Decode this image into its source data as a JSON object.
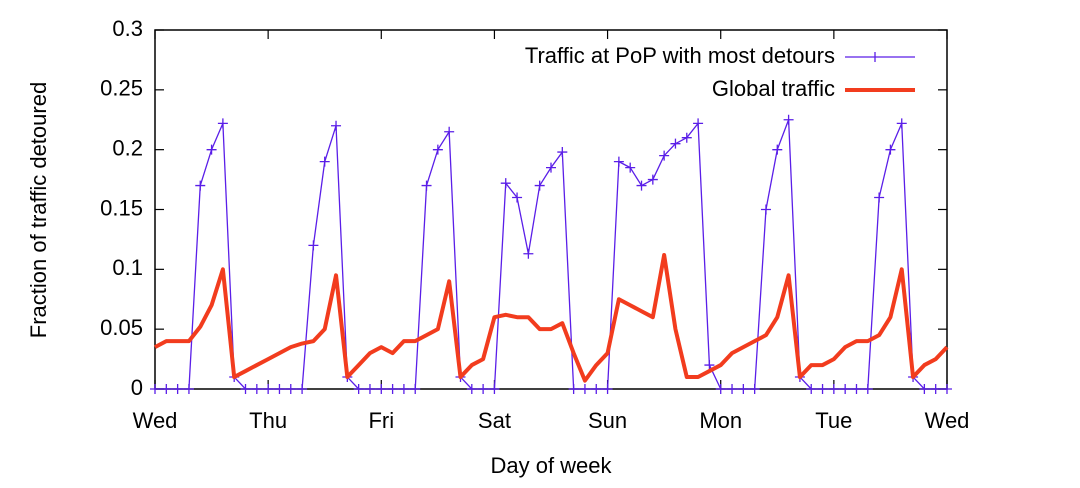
{
  "chart_data": {
    "type": "line",
    "xlabel": "Day of week",
    "ylabel": "Fraction of traffic detoured",
    "x": [
      0,
      0.1,
      0.2,
      0.3,
      0.4,
      0.5,
      0.6,
      0.7,
      0.8,
      0.9,
      1,
      1.1,
      1.2,
      1.3,
      1.4,
      1.5,
      1.6,
      1.7,
      1.8,
      1.9,
      2,
      2.1,
      2.2,
      2.3,
      2.4,
      2.5,
      2.6,
      2.7,
      2.8,
      2.9,
      3,
      3.1,
      3.2,
      3.3,
      3.4,
      3.5,
      3.6,
      3.7,
      3.8,
      3.9,
      4,
      4.1,
      4.2,
      4.3,
      4.4,
      4.5,
      4.6,
      4.7,
      4.8,
      4.9,
      5,
      5.1,
      5.2,
      5.3,
      5.4,
      5.5,
      5.6,
      5.7,
      5.8,
      5.9,
      6,
      6.1,
      6.2,
      6.3,
      6.4,
      6.5,
      6.6,
      6.7,
      6.8,
      6.9,
      7
    ],
    "series": [
      {
        "name": "Traffic at PoP with most detours",
        "color": "#5a1ee8",
        "marker": "+",
        "values": [
          0,
          0,
          0,
          0,
          0.17,
          0.2,
          0.222,
          0.01,
          0,
          0,
          0,
          0,
          0,
          0,
          0.12,
          0.19,
          0.22,
          0.01,
          0,
          0,
          0,
          0,
          0,
          0,
          0.17,
          0.2,
          0.215,
          0.01,
          0,
          0,
          0,
          0.172,
          0.16,
          0.113,
          0.17,
          0.185,
          0.198,
          0,
          0,
          0,
          0,
          0.19,
          0.185,
          0.17,
          0.175,
          0.195,
          0.205,
          0.21,
          0.222,
          0.02,
          0,
          0,
          0,
          0,
          0.15,
          0.2,
          0.225,
          0.01,
          0,
          0,
          0,
          0,
          0,
          0,
          0.16,
          0.2,
          0.222,
          0.01,
          0,
          0,
          0
        ]
      },
      {
        "name": "Global traffic",
        "color": "#f23c1e",
        "marker": null,
        "values": [
          0.035,
          0.04,
          0.04,
          0.04,
          0.052,
          0.07,
          0.1,
          0.01,
          0.015,
          0.02,
          0.025,
          0.03,
          0.035,
          0.038,
          0.04,
          0.05,
          0.095,
          0.01,
          0.02,
          0.03,
          0.035,
          0.03,
          0.04,
          0.04,
          0.045,
          0.05,
          0.09,
          0.01,
          0.02,
          0.025,
          0.06,
          0.062,
          0.06,
          0.06,
          0.05,
          0.05,
          0.055,
          0.03,
          0.007,
          0.02,
          0.03,
          0.075,
          0.07,
          0.065,
          0.06,
          0.112,
          0.05,
          0.01,
          0.01,
          0.015,
          0.02,
          0.03,
          0.035,
          0.04,
          0.045,
          0.06,
          0.095,
          0.01,
          0.02,
          0.02,
          0.025,
          0.035,
          0.04,
          0.04,
          0.045,
          0.06,
          0.1,
          0.01,
          0.02,
          0.025,
          0.035
        ]
      }
    ],
    "xlim": [
      0,
      7
    ],
    "xticks": [
      {
        "value": 0,
        "label": "Wed"
      },
      {
        "value": 1,
        "label": "Thu"
      },
      {
        "value": 2,
        "label": "Fri"
      },
      {
        "value": 3,
        "label": "Sat"
      },
      {
        "value": 4,
        "label": "Sun"
      },
      {
        "value": 5,
        "label": "Mon"
      },
      {
        "value": 6,
        "label": "Tue"
      },
      {
        "value": 7,
        "label": "Wed"
      }
    ],
    "ylim": [
      0,
      0.3
    ],
    "yticks": [
      0,
      0.05,
      0.1,
      0.15,
      0.2,
      0.25,
      0.3
    ],
    "legend": "top-right"
  }
}
